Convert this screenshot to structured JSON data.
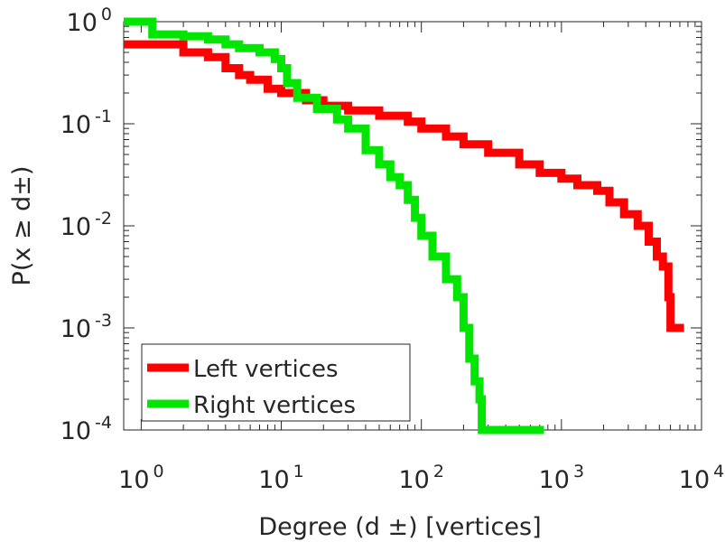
{
  "chart_data": {
    "type": "line",
    "title": "",
    "xlabel": "Degree (d ±) [vertices]",
    "ylabel": "P(x ≥ d±)",
    "x_scale": "log",
    "y_scale": "log",
    "xlim": [
      0.75,
      10000
    ],
    "ylim": [
      0.0001,
      1
    ],
    "x_tick_labels": [
      {
        "value": 1,
        "base": "10",
        "exp": "0"
      },
      {
        "value": 10,
        "base": "10",
        "exp": "1"
      },
      {
        "value": 100,
        "base": "10",
        "exp": "2"
      },
      {
        "value": 1000,
        "base": "10",
        "exp": "3"
      },
      {
        "value": 10000,
        "base": "10",
        "exp": "4"
      }
    ],
    "y_tick_labels": [
      {
        "value": 1,
        "base": "10",
        "exp": "0"
      },
      {
        "value": 0.1,
        "base": "10",
        "exp": "-1"
      },
      {
        "value": 0.01,
        "base": "10",
        "exp": "-2"
      },
      {
        "value": 0.001,
        "base": "10",
        "exp": "-3"
      },
      {
        "value": 0.0001,
        "base": "10",
        "exp": "-4"
      }
    ],
    "grid": false,
    "legend_position": "bottom-left",
    "series": [
      {
        "name": "Left vertices",
        "color": "#ff0000",
        "step": true,
        "points": [
          [
            0.75,
            0.6
          ],
          [
            1.9,
            0.6
          ],
          [
            2.0,
            0.5
          ],
          [
            3.0,
            0.45
          ],
          [
            4.0,
            0.35
          ],
          [
            5.0,
            0.3
          ],
          [
            6.0,
            0.27
          ],
          [
            8.0,
            0.22
          ],
          [
            10,
            0.2
          ],
          [
            15,
            0.17
          ],
          [
            20,
            0.15
          ],
          [
            30,
            0.135
          ],
          [
            50,
            0.12
          ],
          [
            80,
            0.105
          ],
          [
            100,
            0.09
          ],
          [
            150,
            0.075
          ],
          [
            200,
            0.063
          ],
          [
            300,
            0.052
          ],
          [
            500,
            0.04
          ],
          [
            700,
            0.033
          ],
          [
            1000,
            0.029
          ],
          [
            1300,
            0.025
          ],
          [
            1800,
            0.022
          ],
          [
            2200,
            0.017
          ],
          [
            2800,
            0.013
          ],
          [
            3500,
            0.01
          ],
          [
            4200,
            0.007
          ],
          [
            4800,
            0.005
          ],
          [
            5300,
            0.004
          ],
          [
            5800,
            0.002
          ],
          [
            6000,
            0.001
          ],
          [
            7500,
            0.001
          ]
        ]
      },
      {
        "name": "Right vertices",
        "color": "#00e600",
        "step": true,
        "points": [
          [
            0.75,
            1.0
          ],
          [
            1.15,
            1.0
          ],
          [
            1.2,
            0.75
          ],
          [
            2.0,
            0.72
          ],
          [
            3.0,
            0.67
          ],
          [
            4.0,
            0.6
          ],
          [
            5.0,
            0.55
          ],
          [
            7.0,
            0.5
          ],
          [
            9.0,
            0.43
          ],
          [
            10,
            0.35
          ],
          [
            11,
            0.25
          ],
          [
            13,
            0.18
          ],
          [
            18,
            0.14
          ],
          [
            25,
            0.11
          ],
          [
            30,
            0.09
          ],
          [
            40,
            0.055
          ],
          [
            50,
            0.04
          ],
          [
            60,
            0.03
          ],
          [
            70,
            0.025
          ],
          [
            80,
            0.018
          ],
          [
            90,
            0.012
          ],
          [
            100,
            0.008
          ],
          [
            120,
            0.005
          ],
          [
            150,
            0.003
          ],
          [
            180,
            0.002
          ],
          [
            200,
            0.001
          ],
          [
            220,
            0.0005
          ],
          [
            240,
            0.0003
          ],
          [
            260,
            0.0002
          ],
          [
            270,
            0.0001
          ],
          [
            750,
            0.0001
          ]
        ]
      }
    ]
  }
}
